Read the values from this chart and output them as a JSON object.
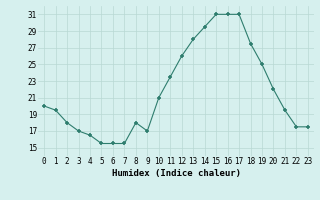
{
  "x": [
    0,
    1,
    2,
    3,
    4,
    5,
    6,
    7,
    8,
    9,
    10,
    11,
    12,
    13,
    14,
    15,
    16,
    17,
    18,
    19,
    20,
    21,
    22,
    23
  ],
  "y": [
    20,
    19.5,
    18,
    17,
    16.5,
    15.5,
    15.5,
    15.5,
    18,
    17,
    21,
    23.5,
    26,
    28,
    29.5,
    31,
    31,
    31,
    27.5,
    25,
    22,
    19.5,
    17.5,
    17.5
  ],
  "line_color": "#2e7d6e",
  "marker_color": "#2e7d6e",
  "bg_color": "#d6f0ee",
  "grid_color": "#b8d8d4",
  "xlabel": "Humidex (Indice chaleur)",
  "ylim": [
    14,
    32
  ],
  "xlim": [
    -0.5,
    23.5
  ],
  "yticks": [
    15,
    17,
    19,
    21,
    23,
    25,
    27,
    29,
    31
  ],
  "xtick_labels": [
    "0",
    "1",
    "2",
    "3",
    "4",
    "5",
    "6",
    "7",
    "8",
    "9",
    "10",
    "11",
    "12",
    "13",
    "14",
    "15",
    "16",
    "17",
    "18",
    "19",
    "20",
    "21",
    "22",
    "23"
  ],
  "label_fontsize": 6.5,
  "tick_fontsize": 5.5
}
